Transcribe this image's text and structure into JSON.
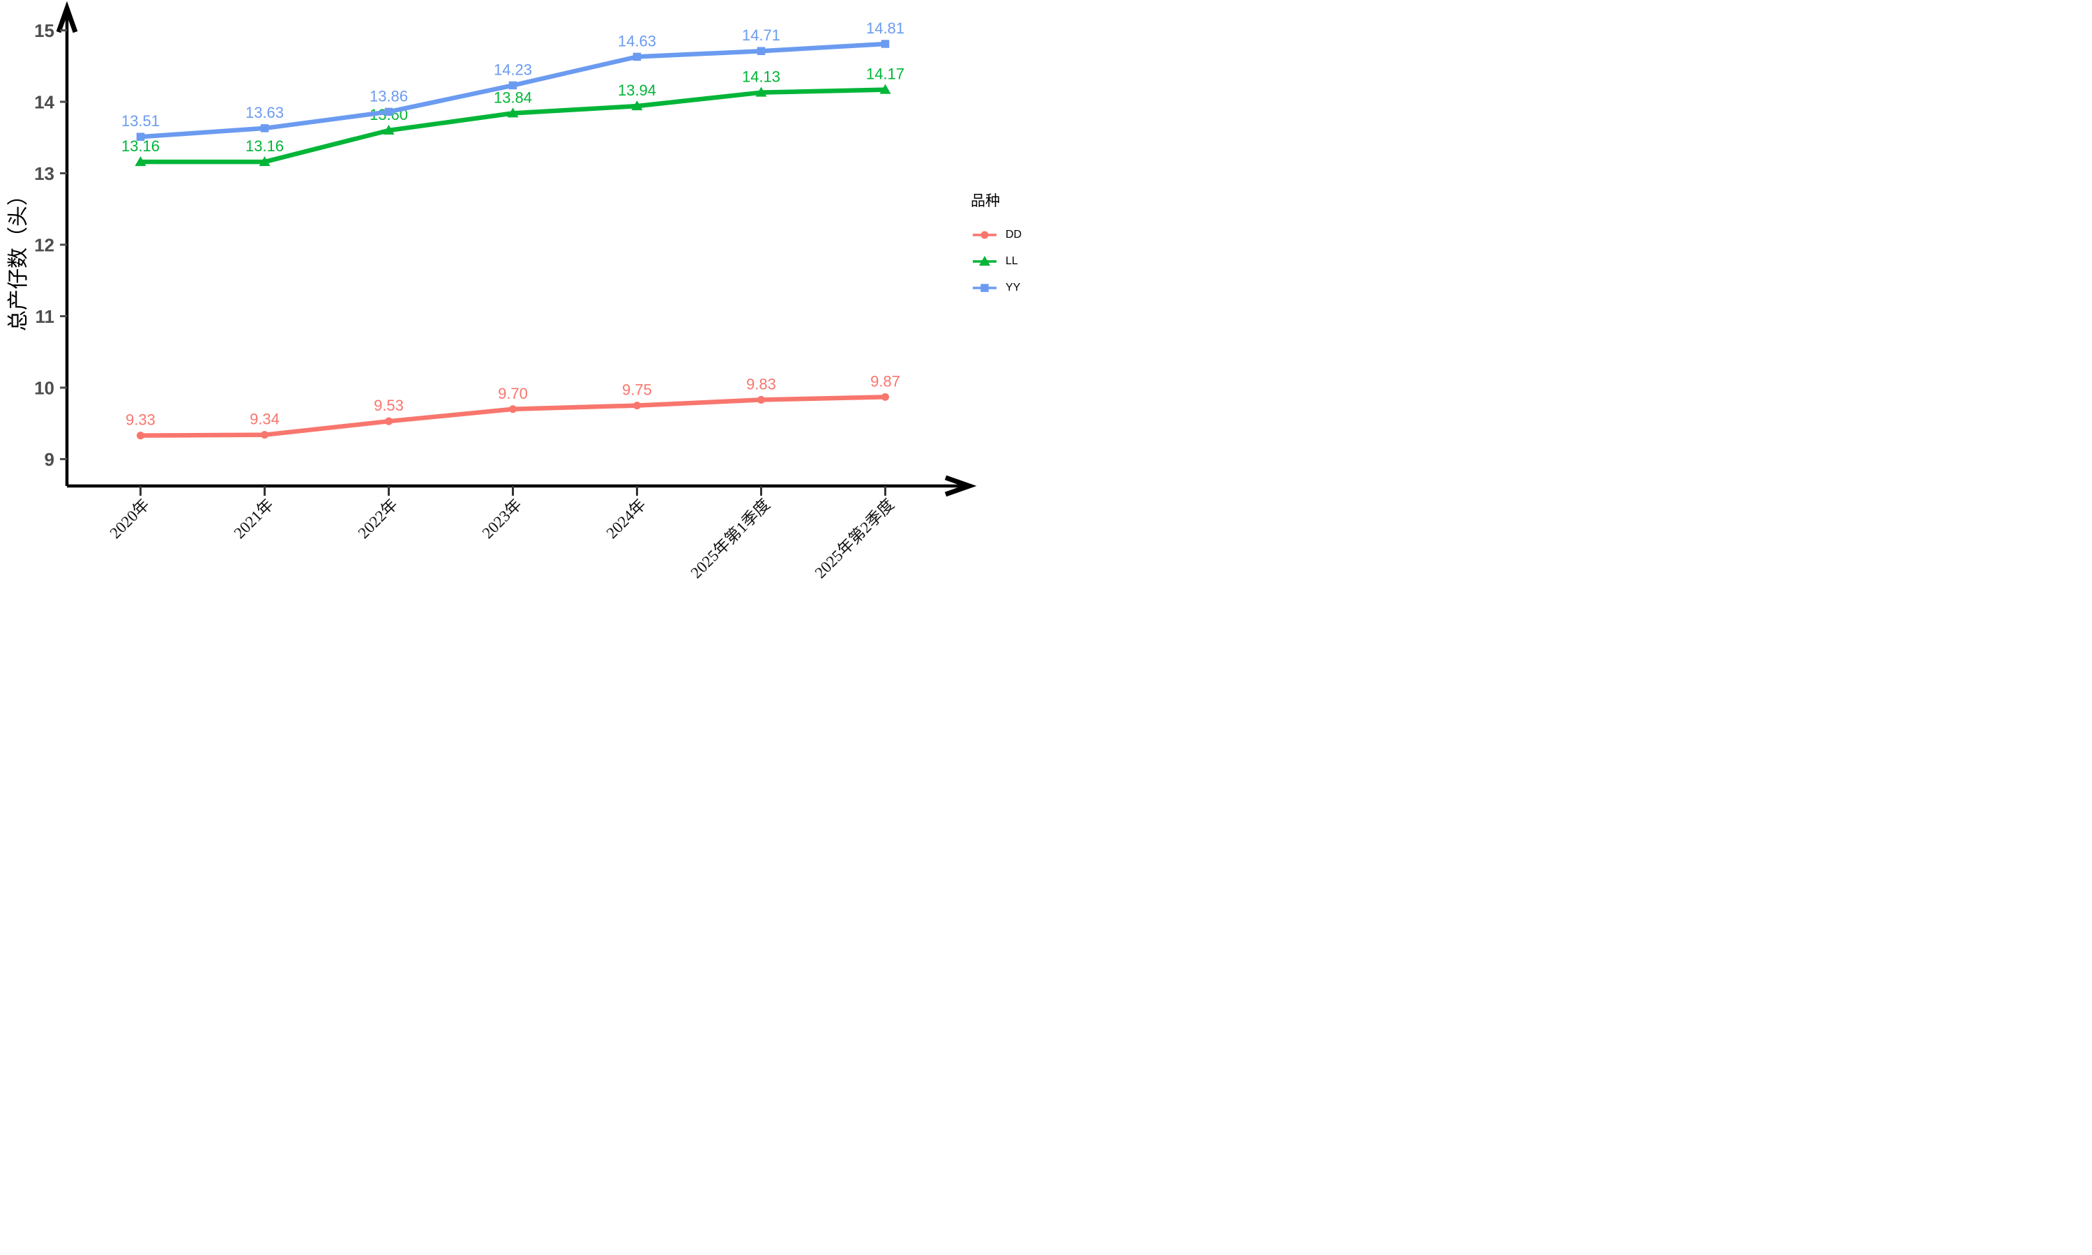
{
  "chart_data": {
    "type": "line",
    "title": "",
    "xlabel": "",
    "ylabel": "总产仔数（头）",
    "categories": [
      "2020年",
      "2021年",
      "2022年",
      "2023年",
      "2024年",
      "2025年第1季度",
      "2025年第2季度"
    ],
    "series": [
      {
        "name": "DD",
        "color": "#F8766D",
        "marker": "circle",
        "values": [
          9.33,
          9.34,
          9.53,
          9.7,
          9.75,
          9.83,
          9.87
        ]
      },
      {
        "name": "LL",
        "color": "#00B538",
        "marker": "triangle",
        "values": [
          13.16,
          13.16,
          13.6,
          13.84,
          13.94,
          14.13,
          14.17
        ]
      },
      {
        "name": "YY",
        "color": "#6B9BF0",
        "marker": "square",
        "values": [
          13.51,
          13.63,
          13.86,
          14.23,
          14.63,
          14.71,
          14.81
        ]
      }
    ],
    "y_ticks": [
      9,
      10,
      11,
      12,
      13,
      14,
      15
    ],
    "ylim": [
      8.6,
      15.3
    ],
    "x_tick_angle": 45,
    "grid": false,
    "legend_title": "品种",
    "legend_position": "right",
    "label_decimals": 2
  },
  "style": {
    "axis_color": "#000000",
    "ytick_color": "#4d4d4d",
    "xtick_mark_color": "#333333"
  }
}
